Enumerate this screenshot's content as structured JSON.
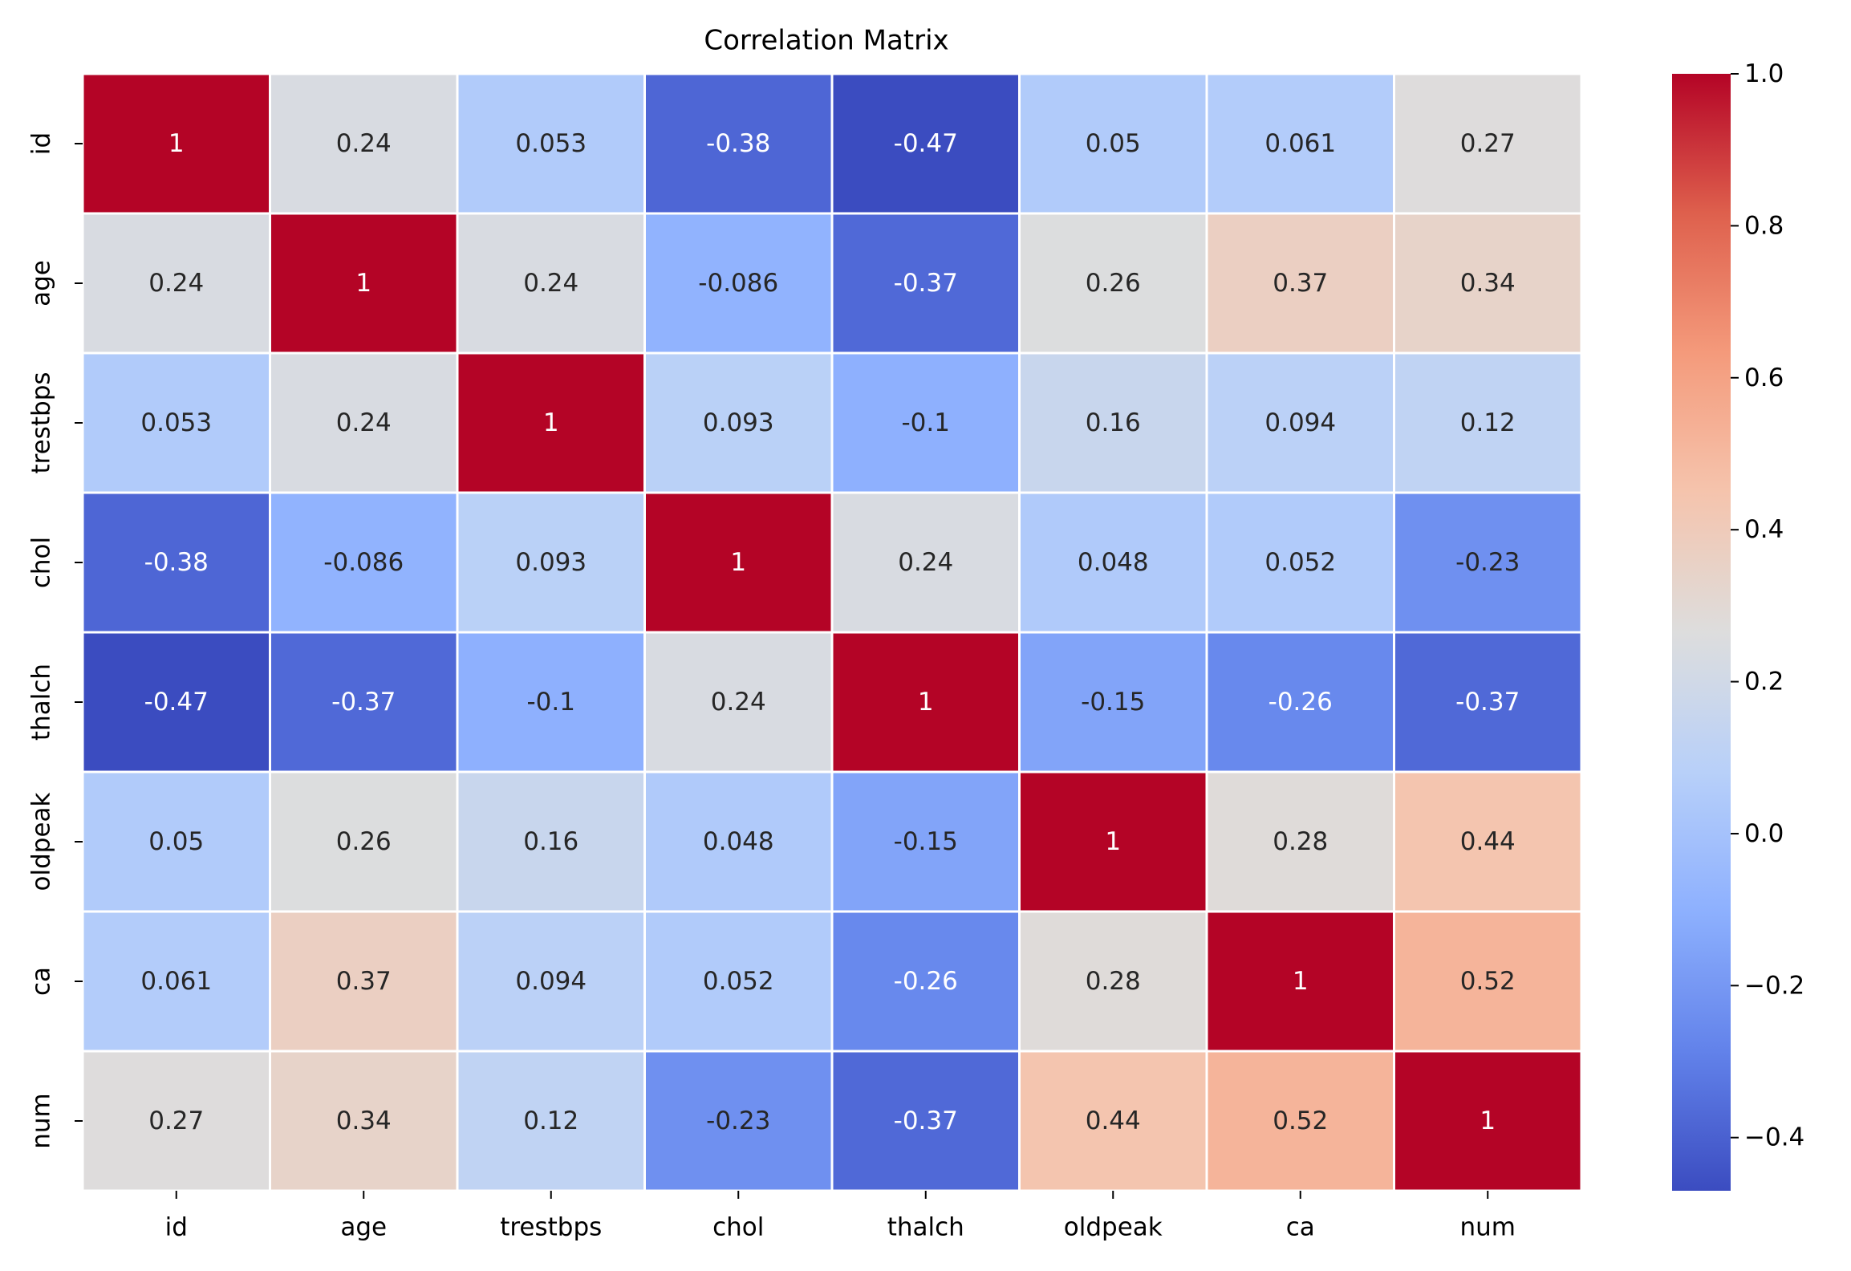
{
  "chart_data": {
    "type": "heatmap",
    "title": "Correlation Matrix",
    "xlabel": "",
    "ylabel": "",
    "x_categories": [
      "id",
      "age",
      "trestbps",
      "chol",
      "thalch",
      "oldpeak",
      "ca",
      "num"
    ],
    "y_categories": [
      "id",
      "age",
      "trestbps",
      "chol",
      "thalch",
      "oldpeak",
      "ca",
      "num"
    ],
    "values": [
      [
        1,
        0.24,
        0.053,
        -0.38,
        -0.47,
        0.05,
        0.061,
        0.27
      ],
      [
        0.24,
        1,
        0.24,
        -0.086,
        -0.37,
        0.26,
        0.37,
        0.34
      ],
      [
        0.053,
        0.24,
        1,
        0.093,
        -0.1,
        0.16,
        0.094,
        0.12
      ],
      [
        -0.38,
        -0.086,
        0.093,
        1,
        0.24,
        0.048,
        0.052,
        -0.23
      ],
      [
        -0.47,
        -0.37,
        -0.1,
        0.24,
        1,
        -0.15,
        -0.26,
        -0.37
      ],
      [
        0.05,
        0.26,
        0.16,
        0.048,
        -0.15,
        1,
        0.28,
        0.44
      ],
      [
        0.061,
        0.37,
        0.094,
        0.052,
        -0.26,
        0.28,
        1,
        0.52
      ],
      [
        0.27,
        0.34,
        0.12,
        -0.23,
        -0.37,
        0.44,
        0.52,
        1
      ]
    ],
    "value_labels": [
      [
        "1",
        "0.24",
        "0.053",
        "-0.38",
        "-0.47",
        "0.05",
        "0.061",
        "0.27"
      ],
      [
        "0.24",
        "1",
        "0.24",
        "-0.086",
        "-0.37",
        "0.26",
        "0.37",
        "0.34"
      ],
      [
        "0.053",
        "0.24",
        "1",
        "0.093",
        "-0.1",
        "0.16",
        "0.094",
        "0.12"
      ],
      [
        "-0.38",
        "-0.086",
        "0.093",
        "1",
        "0.24",
        "0.048",
        "0.052",
        "-0.23"
      ],
      [
        "-0.47",
        "-0.37",
        "-0.1",
        "0.24",
        "1",
        "-0.15",
        "-0.26",
        "-0.37"
      ],
      [
        "0.05",
        "0.26",
        "0.16",
        "0.048",
        "-0.15",
        "1",
        "0.28",
        "0.44"
      ],
      [
        "0.061",
        "0.37",
        "0.094",
        "0.052",
        "-0.26",
        "0.28",
        "1",
        "0.52"
      ],
      [
        "0.27",
        "0.34",
        "0.12",
        "-0.23",
        "-0.37",
        "0.44",
        "0.52",
        "1"
      ]
    ],
    "colormap": "coolwarm",
    "color_range": [
      -0.47,
      1.0
    ],
    "colorbar_ticks": [
      1.0,
      0.8,
      0.6,
      0.4,
      0.2,
      0.0,
      -0.2,
      -0.4
    ],
    "colorbar_tick_labels": [
      "1.0",
      "0.8",
      "0.6",
      "0.4",
      "0.2",
      "0.0",
      "−0.2",
      "−0.4"
    ],
    "grid": true,
    "legend": "colorbar-right"
  },
  "colors": {
    "cell_border": "#ffffff",
    "text_dark": "#262626",
    "text_light": "#ffffff",
    "axis": "#000000"
  }
}
